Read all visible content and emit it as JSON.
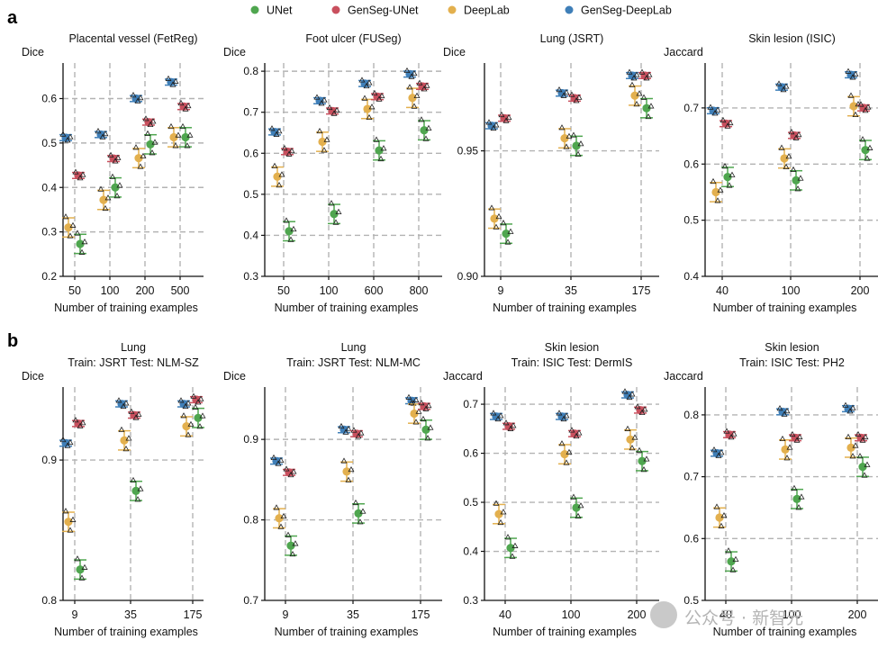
{
  "legend": {
    "items": [
      {
        "name": "UNet",
        "color": "#4fa64f"
      },
      {
        "name": "GenSeg-UNet",
        "color": "#c9505e"
      },
      {
        "name": "DeepLab",
        "color": "#e3b04e"
      },
      {
        "name": "GenSeg-DeepLab",
        "color": "#3f7fb8"
      }
    ]
  },
  "panel_labels": [
    "a",
    "b"
  ],
  "watermark": "公众号 · 新智元",
  "chart_data": [
    {
      "type": "scatter",
      "title": "Placental vessel (FetReg)",
      "subtitle": "",
      "ylabel": "Dice",
      "xlabel": "Number of training examples",
      "categories": [
        "50",
        "100",
        "200",
        "500"
      ],
      "ylim": [
        0.2,
        0.68
      ],
      "yticks": [
        0.2,
        0.3,
        0.4,
        0.5,
        0.6
      ],
      "ytick_labels": [
        "0.2",
        "0.3",
        "0.4",
        "0.5",
        "0.6"
      ],
      "series": [
        {
          "name": "GenSeg-DeepLab",
          "values": [
            0.512,
            0.519,
            0.6,
            0.637
          ]
        },
        {
          "name": "DeepLab",
          "values": [
            0.31,
            0.372,
            0.466,
            0.513
          ]
        },
        {
          "name": "GenSeg-UNet",
          "values": [
            0.427,
            0.465,
            0.547,
            0.582
          ]
        },
        {
          "name": "UNet",
          "values": [
            0.273,
            0.4,
            0.497,
            0.513
          ]
        }
      ]
    },
    {
      "type": "scatter",
      "title": "Foot ulcer (FUSeg)",
      "subtitle": "",
      "ylabel": "Dice",
      "xlabel": "Number of training examples",
      "categories": [
        "50",
        "100",
        "600",
        "800"
      ],
      "ylim": [
        0.3,
        0.82
      ],
      "yticks": [
        0.3,
        0.4,
        0.5,
        0.6,
        0.7,
        0.8
      ],
      "ytick_labels": [
        "0.3",
        "0.4",
        "0.5",
        "0.6",
        "0.7",
        "0.8"
      ],
      "series": [
        {
          "name": "GenSeg-DeepLab",
          "values": [
            0.652,
            0.728,
            0.77,
            0.793
          ]
        },
        {
          "name": "DeepLab",
          "values": [
            0.543,
            0.628,
            0.708,
            0.735
          ]
        },
        {
          "name": "GenSeg-UNet",
          "values": [
            0.604,
            0.703,
            0.738,
            0.763
          ]
        },
        {
          "name": "UNet",
          "values": [
            0.41,
            0.452,
            0.607,
            0.656
          ]
        }
      ]
    },
    {
      "type": "scatter",
      "title": "Lung (JSRT)",
      "subtitle": "",
      "ylabel": "Dice",
      "xlabel": "Number of training examples",
      "categories": [
        "9",
        "35",
        "175"
      ],
      "ylim": [
        0.9,
        0.985
      ],
      "yticks": [
        0.9,
        0.95
      ],
      "ytick_labels": [
        "0.90",
        "0.95"
      ],
      "series": [
        {
          "name": "GenSeg-DeepLab",
          "values": [
            0.96,
            0.973,
            0.98
          ]
        },
        {
          "name": "DeepLab",
          "values": [
            0.923,
            0.955,
            0.972
          ]
        },
        {
          "name": "GenSeg-UNet",
          "values": [
            0.963,
            0.971,
            0.98
          ]
        },
        {
          "name": "UNet",
          "values": [
            0.917,
            0.952,
            0.967
          ]
        }
      ]
    },
    {
      "type": "scatter",
      "title": "Skin lesion (ISIC)",
      "subtitle": "",
      "ylabel": "Jaccard",
      "xlabel": "Number of training examples",
      "categories": [
        "40",
        "100",
        "200"
      ],
      "ylim": [
        0.4,
        0.78
      ],
      "yticks": [
        0.4,
        0.5,
        0.6,
        0.7
      ],
      "ytick_labels": [
        "0.4",
        "0.5",
        "0.6",
        "0.7"
      ],
      "series": [
        {
          "name": "GenSeg-DeepLab",
          "values": [
            0.695,
            0.737,
            0.759
          ]
        },
        {
          "name": "DeepLab",
          "values": [
            0.55,
            0.61,
            0.703
          ]
        },
        {
          "name": "GenSeg-UNet",
          "values": [
            0.672,
            0.651,
            0.7
          ]
        },
        {
          "name": "UNet",
          "values": [
            0.577,
            0.571,
            0.625
          ]
        }
      ]
    },
    {
      "type": "scatter",
      "title": "Lung",
      "subtitle": "Train: JSRT    Test: NLM-SZ",
      "ylabel": "Dice",
      "xlabel": "Number of training examples",
      "categories": [
        "9",
        "35",
        "175"
      ],
      "ylim": [
        0.8,
        0.952
      ],
      "yticks": [
        0.8,
        0.9
      ],
      "ytick_labels": [
        "0.8",
        "0.9"
      ],
      "series": [
        {
          "name": "GenSeg-DeepLab",
          "values": [
            0.912,
            0.94,
            0.94
          ]
        },
        {
          "name": "DeepLab",
          "values": [
            0.856,
            0.914,
            0.924
          ]
        },
        {
          "name": "GenSeg-UNet",
          "values": [
            0.926,
            0.932,
            0.943
          ]
        },
        {
          "name": "UNet",
          "values": [
            0.822,
            0.878,
            0.93
          ]
        }
      ]
    },
    {
      "type": "scatter",
      "title": "Lung",
      "subtitle": "Train: JSRT    Test: NLM-MC",
      "ylabel": "Dice",
      "xlabel": "Number of training examples",
      "categories": [
        "9",
        "35",
        "175"
      ],
      "ylim": [
        0.7,
        0.965
      ],
      "yticks": [
        0.7,
        0.8,
        0.9
      ],
      "ytick_labels": [
        "0.7",
        "0.8",
        "0.9"
      ],
      "series": [
        {
          "name": "GenSeg-DeepLab",
          "values": [
            0.873,
            0.912,
            0.948
          ]
        },
        {
          "name": "DeepLab",
          "values": [
            0.802,
            0.86,
            0.932
          ]
        },
        {
          "name": "GenSeg-UNet",
          "values": [
            0.859,
            0.907,
            0.941
          ]
        },
        {
          "name": "UNet",
          "values": [
            0.768,
            0.808,
            0.912
          ]
        }
      ]
    },
    {
      "type": "scatter",
      "title": "Skin lesion",
      "subtitle": "Train: ISIC    Test: DermIS",
      "ylabel": "Jaccard",
      "xlabel": "Number of training examples",
      "categories": [
        "40",
        "100",
        "200"
      ],
      "ylim": [
        0.3,
        0.735
      ],
      "yticks": [
        0.3,
        0.4,
        0.5,
        0.6,
        0.7
      ],
      "ytick_labels": [
        "0.3",
        "0.4",
        "0.5",
        "0.6",
        "0.7"
      ],
      "series": [
        {
          "name": "GenSeg-DeepLab",
          "values": [
            0.675,
            0.675,
            0.719
          ]
        },
        {
          "name": "DeepLab",
          "values": [
            0.476,
            0.598,
            0.628
          ]
        },
        {
          "name": "GenSeg-UNet",
          "values": [
            0.655,
            0.64,
            0.688
          ]
        },
        {
          "name": "UNet",
          "values": [
            0.407,
            0.489,
            0.584
          ]
        }
      ]
    },
    {
      "type": "scatter",
      "title": "Skin lesion",
      "subtitle": "Train: ISIC    Test: PH2",
      "ylabel": "Jaccard",
      "xlabel": "Number of training examples",
      "categories": [
        "40",
        "100",
        "200"
      ],
      "ylim": [
        0.5,
        0.845
      ],
      "yticks": [
        0.5,
        0.6,
        0.7,
        0.8
      ],
      "ytick_labels": [
        "0.5",
        "0.6",
        "0.7",
        "0.8"
      ],
      "series": [
        {
          "name": "GenSeg-DeepLab",
          "values": [
            0.738,
            0.805,
            0.81
          ]
        },
        {
          "name": "DeepLab",
          "values": [
            0.634,
            0.744,
            0.747
          ]
        },
        {
          "name": "GenSeg-UNet",
          "values": [
            0.768,
            0.763,
            0.763
          ]
        },
        {
          "name": "UNet",
          "values": [
            0.563,
            0.664,
            0.716
          ]
        }
      ]
    }
  ]
}
